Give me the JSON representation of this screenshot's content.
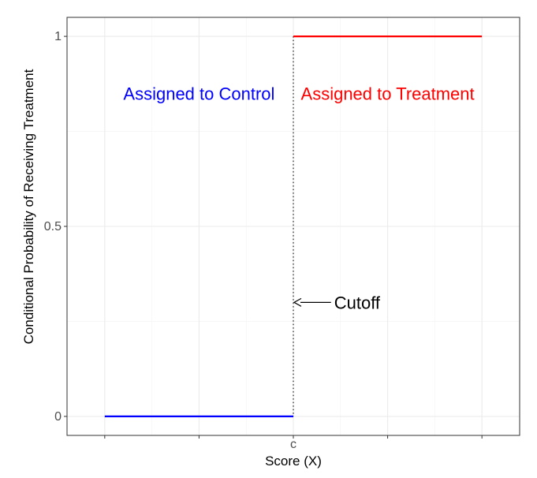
{
  "chart_data": {
    "type": "line",
    "xlabel": "Score (X)",
    "ylabel": "Conditional Probability of Receiving Treatment",
    "x_tick_labels": [
      "c"
    ],
    "y_ticks": [
      {
        "value": 0,
        "label": "0"
      },
      {
        "value": 0.5,
        "label": "0.5"
      },
      {
        "value": 1,
        "label": "1"
      }
    ],
    "xlim": [
      -0.1,
      1.1
    ],
    "ylim": [
      -0.05,
      1.05
    ],
    "cutoff": 0.5,
    "grid": true,
    "series": [
      {
        "color": "#0000ff",
        "x": [
          0,
          0.5
        ],
        "y": [
          0,
          0
        ]
      },
      {
        "color": "#ff0000",
        "x": [
          0.5,
          1
        ],
        "y": [
          1,
          1
        ]
      }
    ],
    "annotations": [
      {
        "text": "Assigned to Control",
        "color": "#0000ff",
        "x": 0.25,
        "y": 0.85
      },
      {
        "text": "Assigned to Treatment",
        "color": "#ff0000",
        "x": 0.75,
        "y": 0.85
      },
      {
        "text": "Cutoff",
        "color": "#000000",
        "x": 0.65,
        "y": 0.3
      }
    ]
  }
}
